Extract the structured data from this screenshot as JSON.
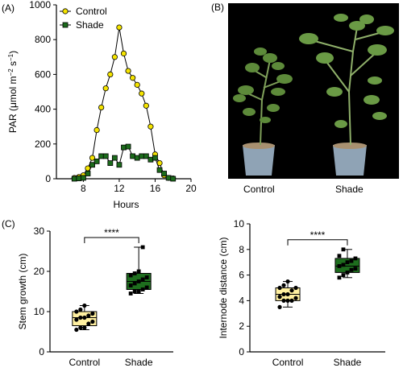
{
  "panels": {
    "a_label": "(A)",
    "b_label": "(B)",
    "c_label": "(C)"
  },
  "photo": {
    "labels": [
      "Control",
      "Shade"
    ],
    "description_icon": "plant-photo"
  },
  "colors": {
    "control": "#f5e400",
    "control_box": "#fff0a0",
    "shade": "#1b6b1b",
    "shade_box": "#1e6e1e"
  },
  "chart_data": [
    {
      "type": "line",
      "title": "",
      "xlabel": "Hours",
      "ylabel": "PAR (μmol m⁻² s⁻¹)",
      "ylabel_main": "PAR (μmol m",
      "ylabel_mid": " s",
      "xlim": [
        5,
        20
      ],
      "ylim": [
        0,
        1000
      ],
      "xticks": [
        8,
        12,
        16,
        20
      ],
      "yticks": [
        0,
        200,
        400,
        600,
        800,
        1000
      ],
      "legend": "top-left",
      "series": [
        {
          "name": "Control",
          "x": [
            7,
            7.5,
            8,
            8.5,
            9,
            9.5,
            10,
            10.5,
            11,
            11.5,
            12,
            12.5,
            13,
            13.5,
            14,
            14.5,
            15,
            15.5,
            16,
            16.5,
            17,
            17.5,
            18
          ],
          "y": [
            5,
            10,
            20,
            60,
            120,
            280,
            410,
            520,
            600,
            700,
            870,
            720,
            620,
            580,
            540,
            490,
            420,
            300,
            140,
            90,
            20,
            5,
            2
          ]
        },
        {
          "name": "Shade",
          "x": [
            7,
            7.5,
            8,
            8.5,
            9,
            9.5,
            10,
            10.5,
            11,
            11.5,
            12,
            12.5,
            13,
            13.5,
            14,
            14.5,
            15,
            15.5,
            16,
            16.5,
            17,
            17.5,
            18
          ],
          "y": [
            0,
            2,
            5,
            30,
            80,
            100,
            130,
            130,
            90,
            120,
            80,
            180,
            185,
            130,
            120,
            130,
            130,
            110,
            120,
            50,
            30,
            5,
            0
          ]
        }
      ]
    },
    {
      "type": "box",
      "ylabel": "Stem growth (cm)",
      "ylim": [
        0,
        30
      ],
      "yticks": [
        0,
        10,
        20,
        30
      ],
      "significance": "****",
      "categories": [
        "Control",
        "Shade"
      ],
      "boxes": [
        {
          "name": "Control",
          "min": 5.5,
          "q1": 6.5,
          "median": 8.5,
          "q3": 10,
          "max": 11.5,
          "points": [
            5.5,
            6,
            6,
            7,
            7.5,
            8,
            8.5,
            8.5,
            9,
            9.5,
            10,
            10.5,
            11.5
          ]
        },
        {
          "name": "Shade",
          "min": 14.5,
          "q1": 15.5,
          "median": 17.5,
          "q3": 19.5,
          "max": 26,
          "points": [
            14.5,
            15,
            15,
            15.5,
            16,
            16.5,
            17,
            17.5,
            18,
            18.5,
            19,
            19.5,
            20,
            26
          ]
        }
      ]
    },
    {
      "type": "box",
      "ylabel": "Internode distance (cm)",
      "ylim": [
        0,
        10
      ],
      "yticks": [
        0,
        2,
        4,
        6,
        8,
        10
      ],
      "significance": "****",
      "categories": [
        "Control",
        "Shade"
      ],
      "boxes": [
        {
          "name": "Control",
          "min": 3.5,
          "q1": 4,
          "median": 4.5,
          "q3": 5,
          "max": 5.5,
          "points": [
            3.5,
            4,
            4,
            4,
            4.2,
            4.3,
            4.5,
            4.5,
            4.8,
            5,
            5,
            5.2,
            5.5
          ]
        },
        {
          "name": "Shade",
          "min": 5.8,
          "q1": 6.2,
          "median": 6.7,
          "q3": 7.3,
          "max": 8,
          "points": [
            5.8,
            6,
            6.2,
            6.4,
            6.5,
            6.7,
            6.8,
            7,
            7.1,
            7.3,
            7.5,
            8
          ]
        }
      ]
    }
  ]
}
